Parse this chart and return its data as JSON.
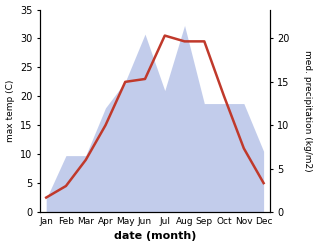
{
  "months": [
    "Jan",
    "Feb",
    "Mar",
    "Apr",
    "May",
    "Jun",
    "Jul",
    "Aug",
    "Sep",
    "Oct",
    "Nov",
    "Dec"
  ],
  "temperature": [
    2.5,
    4.5,
    9.0,
    15.0,
    22.5,
    23.0,
    30.5,
    29.5,
    29.5,
    20.0,
    11.0,
    5.0
  ],
  "precipitation": [
    1.5,
    6.5,
    6.5,
    12.0,
    15.0,
    20.5,
    14.0,
    21.5,
    12.5,
    12.5,
    12.5,
    7.0
  ],
  "temp_color": "#c0392b",
  "precip_fill_color": "#b8c4e8",
  "xlabel": "date (month)",
  "ylabel_left": "max temp (C)",
  "ylabel_right": "med. precipitation (kg/m2)",
  "temp_ylim": [
    0,
    35
  ],
  "precip_ylim": [
    0,
    23.33
  ],
  "temp_yticks": [
    0,
    5,
    10,
    15,
    20,
    25,
    30,
    35
  ],
  "precip_yticks": [
    0,
    5,
    10,
    15,
    20
  ],
  "background_color": "#ffffff"
}
